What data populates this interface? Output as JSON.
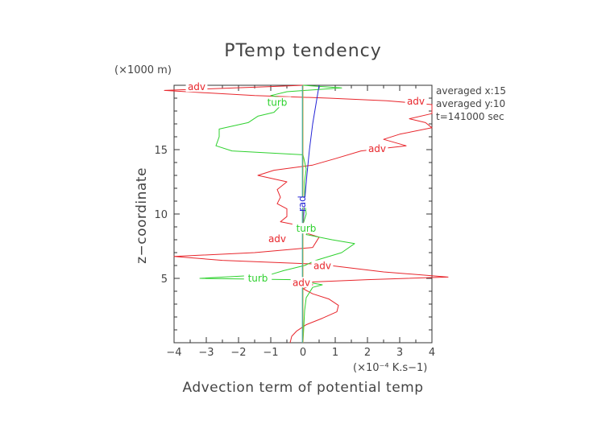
{
  "chart_data": {
    "type": "line",
    "title": "PTemp tendency",
    "xlabel": "Advection term of potential temp",
    "ylabel": "z−coordinate",
    "x_unit": "(×10⁻⁴ K.s−1)",
    "y_unit": "(×1000 m)",
    "xlim": [
      -4,
      4
    ],
    "ylim": [
      0,
      20
    ],
    "x_ticks": [
      -4,
      -3,
      -2,
      -1,
      0,
      1,
      2,
      3,
      4
    ],
    "x_tick_labels": [
      "−4",
      "−3",
      "−2",
      "−1",
      "0",
      "1",
      "2",
      "3",
      "4"
    ],
    "y_ticks": [
      5,
      10,
      15
    ],
    "y_tick_labels": [
      "5",
      "10",
      "15"
    ],
    "grid": false,
    "annotations": [
      "averaged  x:15",
      "averaged  y:10",
      "t=141000 sec"
    ],
    "series": [
      {
        "name": "adv",
        "color": "#e8262c",
        "points": [
          [
            -0.4,
            0.0
          ],
          [
            -0.35,
            0.5
          ],
          [
            -0.2,
            0.9
          ],
          [
            0.1,
            1.4
          ],
          [
            0.6,
            1.9
          ],
          [
            1.05,
            2.4
          ],
          [
            1.1,
            2.9
          ],
          [
            0.8,
            3.4
          ],
          [
            0.3,
            3.8
          ],
          [
            0.0,
            4.2
          ],
          [
            0.3,
            4.5
          ],
          [
            0.1,
            4.7
          ],
          [
            2.0,
            4.9
          ],
          [
            4.5,
            5.1
          ],
          [
            2.5,
            5.5
          ],
          [
            0.5,
            6.1
          ],
          [
            -2.5,
            6.4
          ],
          [
            -4.0,
            6.7
          ],
          [
            -1.5,
            7.0
          ],
          [
            0.3,
            7.4
          ],
          [
            0.4,
            7.8
          ],
          [
            0.5,
            8.2
          ],
          [
            0.0,
            8.6
          ],
          [
            0.1,
            9.0
          ],
          [
            -0.7,
            9.4
          ],
          [
            -0.5,
            9.8
          ],
          [
            -0.5,
            10.4
          ],
          [
            -0.8,
            10.8
          ],
          [
            -0.7,
            11.3
          ],
          [
            -0.8,
            11.9
          ],
          [
            -0.5,
            12.5
          ],
          [
            -1.4,
            13.0
          ],
          [
            -0.9,
            13.4
          ],
          [
            0.3,
            13.8
          ],
          [
            1.0,
            14.3
          ],
          [
            1.8,
            14.9
          ],
          [
            3.2,
            15.3
          ],
          [
            2.5,
            15.8
          ],
          [
            3.0,
            16.2
          ],
          [
            4.0,
            16.7
          ],
          [
            3.8,
            17.1
          ],
          [
            3.3,
            17.4
          ],
          [
            4.0,
            17.8
          ],
          [
            4.0,
            18.5
          ],
          [
            2.6,
            18.8
          ],
          [
            0.8,
            19.0
          ],
          [
            -1.5,
            19.2
          ],
          [
            -4.3,
            19.6
          ],
          [
            -1.0,
            19.9
          ],
          [
            0.0,
            20.0
          ]
        ],
        "labels": [
          {
            "x": -3.3,
            "y": 19.8,
            "text": "adv"
          },
          {
            "x": 3.5,
            "y": 18.7,
            "text": "adv"
          },
          {
            "x": 2.3,
            "y": 15.0,
            "text": "adv"
          },
          {
            "x": -0.8,
            "y": 8.0,
            "text": "adv"
          },
          {
            "x": 0.6,
            "y": 5.9,
            "text": "adv"
          },
          {
            "x": -0.05,
            "y": 4.6,
            "text": "adv"
          }
        ]
      },
      {
        "name": "turb",
        "color": "#2ed12e",
        "points": [
          [
            0.0,
            0.0
          ],
          [
            0.02,
            1.0
          ],
          [
            0.05,
            2.5
          ],
          [
            0.1,
            3.5
          ],
          [
            0.3,
            4.3
          ],
          [
            0.6,
            4.5
          ],
          [
            -0.3,
            4.9
          ],
          [
            -3.2,
            5.0
          ],
          [
            -1.0,
            5.3
          ],
          [
            -0.6,
            5.6
          ],
          [
            0.05,
            6.0
          ],
          [
            0.4,
            6.4
          ],
          [
            1.2,
            7.0
          ],
          [
            1.6,
            7.7
          ],
          [
            0.9,
            8.0
          ],
          [
            0.1,
            8.4
          ],
          [
            0.2,
            8.8
          ],
          [
            0.0,
            9.2
          ],
          [
            0.1,
            10.0
          ],
          [
            0.05,
            11.0
          ],
          [
            0.05,
            12.5
          ],
          [
            0.1,
            13.5
          ],
          [
            0.0,
            14.6
          ],
          [
            -2.2,
            14.9
          ],
          [
            -2.7,
            15.3
          ],
          [
            -2.6,
            16.0
          ],
          [
            -2.6,
            16.6
          ],
          [
            -1.7,
            17.1
          ],
          [
            -1.4,
            17.6
          ],
          [
            -0.9,
            17.9
          ],
          [
            -0.7,
            18.4
          ],
          [
            -0.4,
            18.9
          ],
          [
            -1.0,
            19.2
          ],
          [
            -0.5,
            19.5
          ],
          [
            1.2,
            19.8
          ],
          [
            0.0,
            20.0
          ]
        ],
        "labels": [
          {
            "x": -0.8,
            "y": 18.6,
            "text": "turb"
          },
          {
            "x": -1.4,
            "y": 4.95,
            "text": "turb"
          },
          {
            "x": 0.1,
            "y": 8.8,
            "text": "turb"
          }
        ]
      },
      {
        "name": "rad",
        "color": "#2424d6",
        "points": [
          [
            0.0,
            0.0
          ],
          [
            0.0,
            9.0
          ],
          [
            0.05,
            11.0
          ],
          [
            0.12,
            13.0
          ],
          [
            0.2,
            15.0
          ],
          [
            0.3,
            17.0
          ],
          [
            0.4,
            18.5
          ],
          [
            0.5,
            20.0
          ]
        ],
        "labels": [
          {
            "x": 0.0,
            "y": 10.8,
            "text": "rad"
          }
        ]
      },
      {
        "name": "",
        "color": "#d8a23a",
        "points": [
          [
            0.0,
            0.0
          ],
          [
            0.0,
            20.0
          ]
        ],
        "labels": []
      },
      {
        "name": "",
        "color": "#20b0b0",
        "points": [
          [
            -0.02,
            0.0
          ],
          [
            -0.02,
            20.0
          ]
        ],
        "labels": []
      }
    ]
  }
}
